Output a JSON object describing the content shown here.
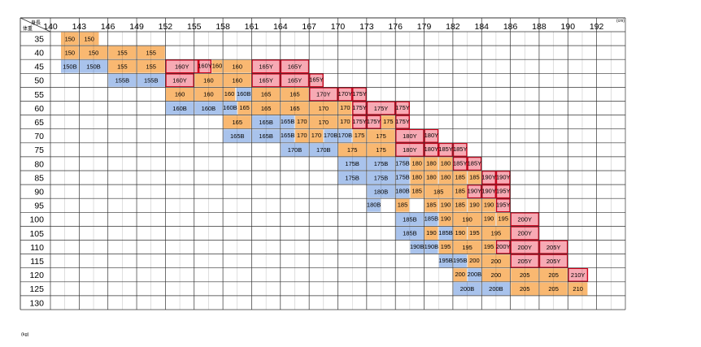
{
  "chart_data": {
    "type": "table",
    "corner": {
      "top": "身長",
      "bottom": "体重"
    },
    "height_unit": "(cm)",
    "weight_unit": "(kg)",
    "heights": [
      "140",
      "143",
      "146",
      "149",
      "152",
      "155",
      "158",
      "161",
      "164",
      "167",
      "170",
      "173",
      "176",
      "179",
      "182",
      "184",
      "186",
      "188",
      "190",
      "192"
    ],
    "weights": [
      "35",
      "40",
      "45",
      "50",
      "55",
      "60",
      "65",
      "70",
      "75",
      "80",
      "85",
      "90",
      "95",
      "100",
      "105",
      "110",
      "115",
      "120",
      "125",
      "130"
    ],
    "colors": {
      "regular": "#f9b871",
      "Y": "#f7aab4",
      "B": "#a9c3ec",
      "grid": "#333333",
      "y_border": "#d0021b"
    },
    "cells": [
      {
        "r": 0,
        "c0": 0.35,
        "c1": 1,
        "t": "150",
        "k": "O"
      },
      {
        "r": 0,
        "c0": 1,
        "c1": 1.7,
        "t": "150",
        "k": "O"
      },
      {
        "r": 1,
        "c0": 0.35,
        "c1": 1,
        "t": "150",
        "k": "O"
      },
      {
        "r": 1,
        "c0": 1,
        "c1": 2,
        "t": "150",
        "k": "O"
      },
      {
        "r": 1,
        "c0": 2,
        "c1": 3,
        "t": "155",
        "k": "O"
      },
      {
        "r": 1,
        "c0": 3,
        "c1": 4,
        "t": "155",
        "k": "O"
      },
      {
        "r": 2,
        "c0": 0.35,
        "c1": 1,
        "t": "150B",
        "k": "B"
      },
      {
        "r": 2,
        "c0": 1,
        "c1": 2,
        "t": "150B",
        "k": "B"
      },
      {
        "r": 2,
        "c0": 2,
        "c1": 3,
        "t": "155",
        "k": "O"
      },
      {
        "r": 2,
        "c0": 3,
        "c1": 4,
        "t": "155",
        "k": "O"
      },
      {
        "r": 2,
        "c0": 4,
        "c1": 5.15,
        "t": "160Y",
        "k": "Y"
      },
      {
        "r": 2,
        "c0": 5.15,
        "c1": 5.6,
        "t": "160Y",
        "k": "Y"
      },
      {
        "r": 2,
        "c0": 5.6,
        "c1": 6,
        "t": "160",
        "k": "O"
      },
      {
        "r": 2,
        "c0": 6,
        "c1": 7,
        "t": "160",
        "k": "O"
      },
      {
        "r": 2,
        "c0": 7,
        "c1": 8,
        "t": "165Y",
        "k": "Y"
      },
      {
        "r": 2,
        "c0": 8,
        "c1": 9,
        "t": "165Y",
        "k": "Y"
      },
      {
        "r": 3,
        "c0": 2,
        "c1": 3,
        "t": "155B",
        "k": "B"
      },
      {
        "r": 3,
        "c0": 3,
        "c1": 4,
        "t": "155B",
        "k": "B"
      },
      {
        "r": 3,
        "c0": 4,
        "c1": 5,
        "t": "160Y",
        "k": "Y"
      },
      {
        "r": 3,
        "c0": 5,
        "c1": 6,
        "t": "160",
        "k": "O"
      },
      {
        "r": 3,
        "c0": 6,
        "c1": 7,
        "t": "160",
        "k": "O"
      },
      {
        "r": 3,
        "c0": 7,
        "c1": 8,
        "t": "165Y",
        "k": "Y"
      },
      {
        "r": 3,
        "c0": 8,
        "c1": 9,
        "t": "165Y",
        "k": "Y"
      },
      {
        "r": 3,
        "c0": 9,
        "c1": 9.5,
        "t": "165Y",
        "k": "Y"
      },
      {
        "r": 4,
        "c0": 4,
        "c1": 5,
        "t": "160",
        "k": "O"
      },
      {
        "r": 4,
        "c0": 5,
        "c1": 6,
        "t": "160",
        "k": "O"
      },
      {
        "r": 4,
        "c0": 6,
        "c1": 6.45,
        "t": "160",
        "k": "O"
      },
      {
        "r": 4,
        "c0": 6.45,
        "c1": 7,
        "t": "160B",
        "k": "B"
      },
      {
        "r": 4,
        "c0": 7,
        "c1": 8,
        "t": "165",
        "k": "O"
      },
      {
        "r": 4,
        "c0": 8,
        "c1": 9,
        "t": "165",
        "k": "O"
      },
      {
        "r": 4,
        "c0": 9,
        "c1": 10,
        "t": "170Y",
        "k": "Y"
      },
      {
        "r": 4,
        "c0": 10,
        "c1": 10.5,
        "t": "170Y",
        "k": "Y"
      },
      {
        "r": 4,
        "c0": 10.5,
        "c1": 11,
        "t": "175Y",
        "k": "Y"
      },
      {
        "r": 5,
        "c0": 4,
        "c1": 5,
        "t": "160B",
        "k": "B"
      },
      {
        "r": 5,
        "c0": 5,
        "c1": 6,
        "t": "160B",
        "k": "B"
      },
      {
        "r": 5,
        "c0": 6,
        "c1": 6.5,
        "t": "160B",
        "k": "B"
      },
      {
        "r": 5,
        "c0": 6.5,
        "c1": 7,
        "t": "165",
        "k": "O"
      },
      {
        "r": 5,
        "c0": 7,
        "c1": 8,
        "t": "165",
        "k": "O"
      },
      {
        "r": 5,
        "c0": 8,
        "c1": 9,
        "t": "165",
        "k": "O"
      },
      {
        "r": 5,
        "c0": 9,
        "c1": 10,
        "t": "170",
        "k": "O"
      },
      {
        "r": 5,
        "c0": 10,
        "c1": 10.5,
        "t": "170",
        "k": "O"
      },
      {
        "r": 5,
        "c0": 10.5,
        "c1": 11,
        "t": "175Y",
        "k": "Y"
      },
      {
        "r": 5,
        "c0": 11,
        "c1": 12,
        "t": "175Y",
        "k": "Y"
      },
      {
        "r": 5,
        "c0": 12,
        "c1": 12.5,
        "t": "175Y",
        "k": "Y"
      },
      {
        "r": 6,
        "c0": 6,
        "c1": 7,
        "t": "165",
        "k": "O"
      },
      {
        "r": 6,
        "c0": 7,
        "c1": 8,
        "t": "165B",
        "k": "B"
      },
      {
        "r": 6,
        "c0": 8,
        "c1": 8.5,
        "t": "165B",
        "k": "B"
      },
      {
        "r": 6,
        "c0": 8.5,
        "c1": 9,
        "t": "170",
        "k": "O"
      },
      {
        "r": 6,
        "c0": 9,
        "c1": 10,
        "t": "170",
        "k": "O"
      },
      {
        "r": 6,
        "c0": 10,
        "c1": 10.5,
        "t": "170",
        "k": "O"
      },
      {
        "r": 6,
        "c0": 10.5,
        "c1": 11,
        "t": "175Y",
        "k": "Y"
      },
      {
        "r": 6,
        "c0": 11,
        "c1": 11.5,
        "t": "175Y",
        "k": "Y"
      },
      {
        "r": 6,
        "c0": 11.5,
        "c1": 12,
        "t": "175",
        "k": "O"
      },
      {
        "r": 6,
        "c0": 12,
        "c1": 12.5,
        "t": "175Y",
        "k": "Y"
      },
      {
        "r": 7,
        "c0": 6,
        "c1": 7,
        "t": "165B",
        "k": "B"
      },
      {
        "r": 7,
        "c0": 7,
        "c1": 8,
        "t": "165B",
        "k": "B"
      },
      {
        "r": 7,
        "c0": 8,
        "c1": 8.5,
        "t": "165B",
        "k": "B"
      },
      {
        "r": 7,
        "c0": 8.5,
        "c1": 9,
        "t": "170",
        "k": "O"
      },
      {
        "r": 7,
        "c0": 9,
        "c1": 9.5,
        "t": "170",
        "k": "O"
      },
      {
        "r": 7,
        "c0": 9.5,
        "c1": 10,
        "t": "170B",
        "k": "B"
      },
      {
        "r": 7,
        "c0": 10,
        "c1": 10.5,
        "t": "170B",
        "k": "B"
      },
      {
        "r": 7,
        "c0": 10.5,
        "c1": 11,
        "t": "175",
        "k": "O"
      },
      {
        "r": 7,
        "c0": 11,
        "c1": 12,
        "t": "175",
        "k": "O"
      },
      {
        "r": 7,
        "c0": 12,
        "c1": 13,
        "t": "180Y",
        "k": "Y"
      },
      {
        "r": 7,
        "c0": 13,
        "c1": 13.5,
        "t": "180Y",
        "k": "Y"
      },
      {
        "r": 8,
        "c0": 8,
        "c1": 9,
        "t": "170B",
        "k": "B"
      },
      {
        "r": 8,
        "c0": 9,
        "c1": 10,
        "t": "170B",
        "k": "B"
      },
      {
        "r": 8,
        "c0": 10,
        "c1": 11,
        "t": "175",
        "k": "O"
      },
      {
        "r": 8,
        "c0": 11,
        "c1": 12,
        "t": "175",
        "k": "O"
      },
      {
        "r": 8,
        "c0": 12,
        "c1": 13,
        "t": "180Y",
        "k": "Y"
      },
      {
        "r": 8,
        "c0": 13,
        "c1": 13.5,
        "t": "180Y",
        "k": "Y"
      },
      {
        "r": 8,
        "c0": 13.5,
        "c1": 14,
        "t": "185Y",
        "k": "Y"
      },
      {
        "r": 8,
        "c0": 14,
        "c1": 14.5,
        "t": "185Y",
        "k": "Y"
      },
      {
        "r": 9,
        "c0": 10,
        "c1": 11,
        "t": "175B",
        "k": "B"
      },
      {
        "r": 9,
        "c0": 11,
        "c1": 12,
        "t": "175B",
        "k": "B"
      },
      {
        "r": 9,
        "c0": 12,
        "c1": 12.5,
        "t": "175B",
        "k": "B"
      },
      {
        "r": 9,
        "c0": 12.5,
        "c1": 13,
        "t": "180",
        "k": "O"
      },
      {
        "r": 9,
        "c0": 13,
        "c1": 13.5,
        "t": "180",
        "k": "O"
      },
      {
        "r": 9,
        "c0": 13.5,
        "c1": 14,
        "t": "180",
        "k": "O"
      },
      {
        "r": 9,
        "c0": 14,
        "c1": 14.5,
        "t": "185Y",
        "k": "Y"
      },
      {
        "r": 9,
        "c0": 14.5,
        "c1": 15,
        "t": "185Y",
        "k": "Y"
      },
      {
        "r": 10,
        "c0": 10,
        "c1": 11,
        "t": "175B",
        "k": "B"
      },
      {
        "r": 10,
        "c0": 11,
        "c1": 12,
        "t": "175B",
        "k": "B"
      },
      {
        "r": 10,
        "c0": 12,
        "c1": 12.5,
        "t": "175B",
        "k": "B"
      },
      {
        "r": 10,
        "c0": 12.5,
        "c1": 13,
        "t": "180",
        "k": "O"
      },
      {
        "r": 10,
        "c0": 13,
        "c1": 13.5,
        "t": "180",
        "k": "O"
      },
      {
        "r": 10,
        "c0": 13.5,
        "c1": 14,
        "t": "180",
        "k": "O"
      },
      {
        "r": 10,
        "c0": 14,
        "c1": 14.5,
        "t": "185",
        "k": "O"
      },
      {
        "r": 10,
        "c0": 14.5,
        "c1": 15,
        "t": "185",
        "k": "O"
      },
      {
        "r": 10,
        "c0": 15,
        "c1": 15.5,
        "t": "190Y",
        "k": "Y"
      },
      {
        "r": 10,
        "c0": 15.5,
        "c1": 16,
        "t": "190Y",
        "k": "Y"
      },
      {
        "r": 11,
        "c0": 11,
        "c1": 12,
        "t": "180B",
        "k": "B"
      },
      {
        "r": 11,
        "c0": 12,
        "c1": 12.5,
        "t": "180B",
        "k": "B"
      },
      {
        "r": 11,
        "c0": 12.5,
        "c1": 13,
        "t": "185",
        "k": "O"
      },
      {
        "r": 11,
        "c0": 13,
        "c1": 14,
        "t": "185",
        "k": "O"
      },
      {
        "r": 11,
        "c0": 14,
        "c1": 14.5,
        "t": "185",
        "k": "O"
      },
      {
        "r": 11,
        "c0": 14.5,
        "c1": 15,
        "t": "190Y",
        "k": "Y"
      },
      {
        "r": 11,
        "c0": 15,
        "c1": 15.5,
        "t": "190Y",
        "k": "Y"
      },
      {
        "r": 11,
        "c0": 15.5,
        "c1": 16,
        "t": "195Y",
        "k": "Y"
      },
      {
        "r": 12,
        "c0": 11,
        "c1": 11.5,
        "t": "180B",
        "k": "B"
      },
      {
        "r": 12,
        "c0": 12,
        "c1": 12.5,
        "t": "185",
        "k": "O"
      },
      {
        "r": 12,
        "c0": 13,
        "c1": 13.5,
        "t": "185",
        "k": "O"
      },
      {
        "r": 12,
        "c0": 13.5,
        "c1": 14,
        "t": "190",
        "k": "O"
      },
      {
        "r": 12,
        "c0": 14,
        "c1": 14.5,
        "t": "185",
        "k": "O"
      },
      {
        "r": 12,
        "c0": 14.5,
        "c1": 15,
        "t": "190",
        "k": "O"
      },
      {
        "r": 12,
        "c0": 15,
        "c1": 15.5,
        "t": "190",
        "k": "O"
      },
      {
        "r": 12,
        "c0": 15.5,
        "c1": 16,
        "t": "195Y",
        "k": "Y"
      },
      {
        "r": 13,
        "c0": 12,
        "c1": 13,
        "t": "185B",
        "k": "B"
      },
      {
        "r": 13,
        "c0": 13,
        "c1": 13.5,
        "t": "185B",
        "k": "B"
      },
      {
        "r": 13,
        "c0": 13.5,
        "c1": 14,
        "t": "190",
        "k": "O"
      },
      {
        "r": 13,
        "c0": 14,
        "c1": 15,
        "t": "190",
        "k": "O"
      },
      {
        "r": 13,
        "c0": 15,
        "c1": 15.5,
        "t": "190",
        "k": "O"
      },
      {
        "r": 13,
        "c0": 15.5,
        "c1": 16,
        "t": "195",
        "k": "O"
      },
      {
        "r": 13,
        "c0": 16,
        "c1": 17,
        "t": "200Y",
        "k": "Y"
      },
      {
        "r": 14,
        "c0": 12,
        "c1": 13,
        "t": "185B",
        "k": "B"
      },
      {
        "r": 14,
        "c0": 13,
        "c1": 13.5,
        "t": "190",
        "k": "O"
      },
      {
        "r": 14,
        "c0": 13.5,
        "c1": 14,
        "t": "185B",
        "k": "B"
      },
      {
        "r": 14,
        "c0": 14,
        "c1": 14.5,
        "t": "190",
        "k": "O"
      },
      {
        "r": 14,
        "c0": 14.5,
        "c1": 15,
        "t": "195",
        "k": "O"
      },
      {
        "r": 14,
        "c0": 15,
        "c1": 16,
        "t": "195",
        "k": "O"
      },
      {
        "r": 14,
        "c0": 16,
        "c1": 17,
        "t": "200Y",
        "k": "Y"
      },
      {
        "r": 15,
        "c0": 12.5,
        "c1": 13,
        "t": "190B",
        "k": "B"
      },
      {
        "r": 15,
        "c0": 13,
        "c1": 13.5,
        "t": "190B",
        "k": "B"
      },
      {
        "r": 15,
        "c0": 13.5,
        "c1": 14,
        "t": "195",
        "k": "O"
      },
      {
        "r": 15,
        "c0": 14,
        "c1": 15,
        "t": "195",
        "k": "O"
      },
      {
        "r": 15,
        "c0": 15,
        "c1": 15.5,
        "t": "195",
        "k": "O"
      },
      {
        "r": 15,
        "c0": 15.5,
        "c1": 16,
        "t": "200Y",
        "k": "Y"
      },
      {
        "r": 15,
        "c0": 16,
        "c1": 17,
        "t": "200Y",
        "k": "Y"
      },
      {
        "r": 15,
        "c0": 17,
        "c1": 18,
        "t": "205Y",
        "k": "Y"
      },
      {
        "r": 16,
        "c0": 13.5,
        "c1": 14,
        "t": "195B",
        "k": "B"
      },
      {
        "r": 16,
        "c0": 14,
        "c1": 14.5,
        "t": "195B",
        "k": "B"
      },
      {
        "r": 16,
        "c0": 14.5,
        "c1": 15,
        "t": "200",
        "k": "O"
      },
      {
        "r": 16,
        "c0": 15,
        "c1": 16,
        "t": "200",
        "k": "O"
      },
      {
        "r": 16,
        "c0": 16,
        "c1": 17,
        "t": "205Y",
        "k": "Y"
      },
      {
        "r": 16,
        "c0": 17,
        "c1": 18,
        "t": "205Y",
        "k": "Y"
      },
      {
        "r": 17,
        "c0": 14,
        "c1": 14.5,
        "t": "200",
        "k": "O"
      },
      {
        "r": 17,
        "c0": 14.5,
        "c1": 15,
        "t": "200B",
        "k": "B"
      },
      {
        "r": 17,
        "c0": 15,
        "c1": 16,
        "t": "200",
        "k": "O"
      },
      {
        "r": 17,
        "c0": 16,
        "c1": 17,
        "t": "205",
        "k": "O"
      },
      {
        "r": 17,
        "c0": 17,
        "c1": 18,
        "t": "205",
        "k": "O"
      },
      {
        "r": 17,
        "c0": 18,
        "c1": 18.7,
        "t": "210Y",
        "k": "Y"
      },
      {
        "r": 18,
        "c0": 14,
        "c1": 15,
        "t": "200B",
        "k": "B"
      },
      {
        "r": 18,
        "c0": 15,
        "c1": 16,
        "t": "200B",
        "k": "B"
      },
      {
        "r": 18,
        "c0": 16,
        "c1": 17,
        "t": "205",
        "k": "O"
      },
      {
        "r": 18,
        "c0": 17,
        "c1": 18,
        "t": "205",
        "k": "O"
      },
      {
        "r": 18,
        "c0": 18,
        "c1": 18.7,
        "t": "210",
        "k": "O"
      }
    ]
  }
}
